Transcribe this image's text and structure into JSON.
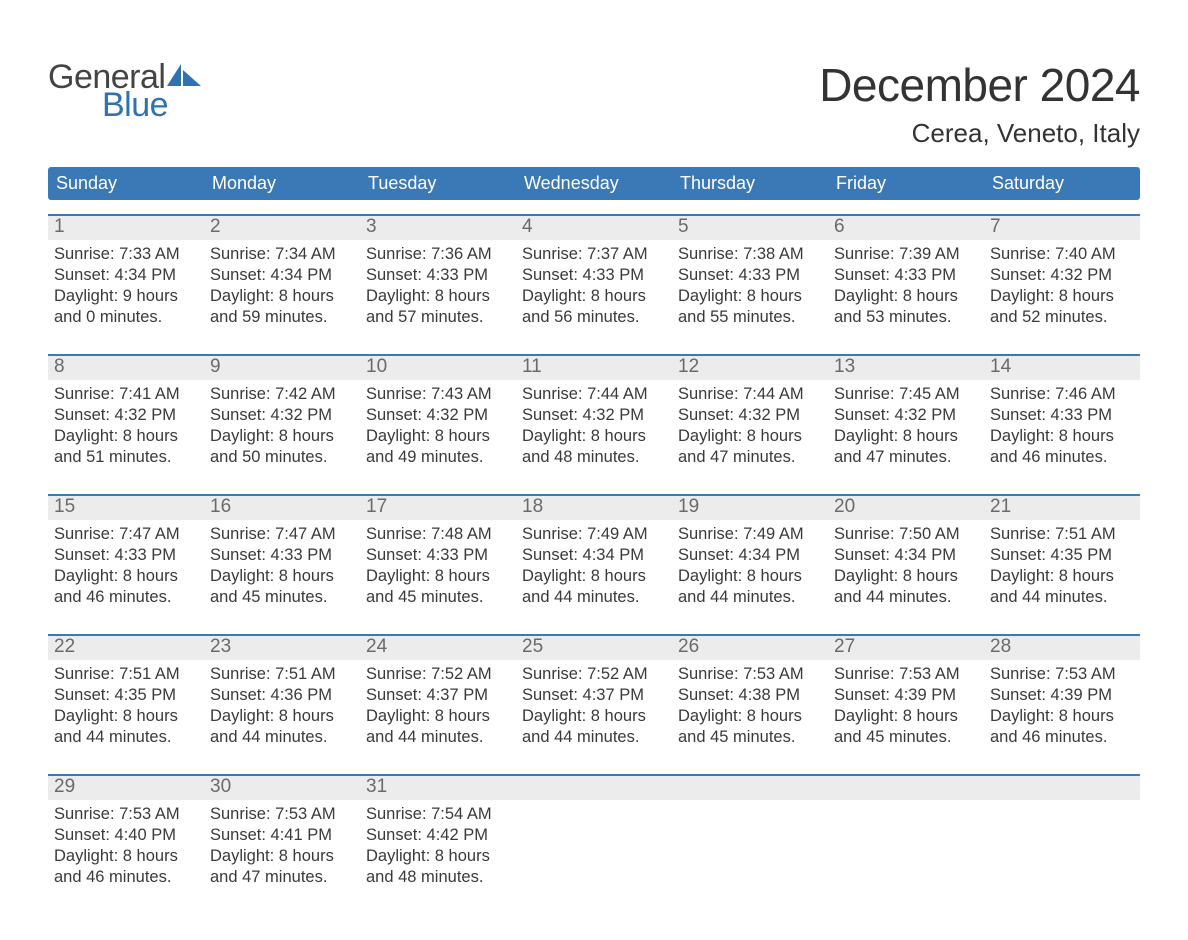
{
  "brand": {
    "word1": "General",
    "word2": "Blue",
    "text_color_top": "#444444",
    "text_color_bottom": "#2f72b4",
    "sail_color": "#2f72b4"
  },
  "header": {
    "month_title": "December 2024",
    "location": "Cerea, Veneto, Italy"
  },
  "style": {
    "header_bg": "#3b78b6",
    "header_text": "#ffffff",
    "daynum_bg": "#ececec",
    "daynum_border_top": "#3b78b6",
    "daynum_text": "#6a6a6a",
    "body_text": "#3a3a3a",
    "page_bg": "#ffffff",
    "font_family": "Arial, Helvetica, sans-serif",
    "month_title_fontsize": 46,
    "location_fontsize": 26,
    "dow_fontsize": 18,
    "daynum_fontsize": 19,
    "cell_fontsize": 16.5
  },
  "days_of_week": [
    "Sunday",
    "Monday",
    "Tuesday",
    "Wednesday",
    "Thursday",
    "Friday",
    "Saturday"
  ],
  "weeks": [
    [
      {
        "n": "1",
        "sunrise": "Sunrise: 7:33 AM",
        "sunset": "Sunset: 4:34 PM",
        "d1": "Daylight: 9 hours",
        "d2": "and 0 minutes."
      },
      {
        "n": "2",
        "sunrise": "Sunrise: 7:34 AM",
        "sunset": "Sunset: 4:34 PM",
        "d1": "Daylight: 8 hours",
        "d2": "and 59 minutes."
      },
      {
        "n": "3",
        "sunrise": "Sunrise: 7:36 AM",
        "sunset": "Sunset: 4:33 PM",
        "d1": "Daylight: 8 hours",
        "d2": "and 57 minutes."
      },
      {
        "n": "4",
        "sunrise": "Sunrise: 7:37 AM",
        "sunset": "Sunset: 4:33 PM",
        "d1": "Daylight: 8 hours",
        "d2": "and 56 minutes."
      },
      {
        "n": "5",
        "sunrise": "Sunrise: 7:38 AM",
        "sunset": "Sunset: 4:33 PM",
        "d1": "Daylight: 8 hours",
        "d2": "and 55 minutes."
      },
      {
        "n": "6",
        "sunrise": "Sunrise: 7:39 AM",
        "sunset": "Sunset: 4:33 PM",
        "d1": "Daylight: 8 hours",
        "d2": "and 53 minutes."
      },
      {
        "n": "7",
        "sunrise": "Sunrise: 7:40 AM",
        "sunset": "Sunset: 4:32 PM",
        "d1": "Daylight: 8 hours",
        "d2": "and 52 minutes."
      }
    ],
    [
      {
        "n": "8",
        "sunrise": "Sunrise: 7:41 AM",
        "sunset": "Sunset: 4:32 PM",
        "d1": "Daylight: 8 hours",
        "d2": "and 51 minutes."
      },
      {
        "n": "9",
        "sunrise": "Sunrise: 7:42 AM",
        "sunset": "Sunset: 4:32 PM",
        "d1": "Daylight: 8 hours",
        "d2": "and 50 minutes."
      },
      {
        "n": "10",
        "sunrise": "Sunrise: 7:43 AM",
        "sunset": "Sunset: 4:32 PM",
        "d1": "Daylight: 8 hours",
        "d2": "and 49 minutes."
      },
      {
        "n": "11",
        "sunrise": "Sunrise: 7:44 AM",
        "sunset": "Sunset: 4:32 PM",
        "d1": "Daylight: 8 hours",
        "d2": "and 48 minutes."
      },
      {
        "n": "12",
        "sunrise": "Sunrise: 7:44 AM",
        "sunset": "Sunset: 4:32 PM",
        "d1": "Daylight: 8 hours",
        "d2": "and 47 minutes."
      },
      {
        "n": "13",
        "sunrise": "Sunrise: 7:45 AM",
        "sunset": "Sunset: 4:32 PM",
        "d1": "Daylight: 8 hours",
        "d2": "and 47 minutes."
      },
      {
        "n": "14",
        "sunrise": "Sunrise: 7:46 AM",
        "sunset": "Sunset: 4:33 PM",
        "d1": "Daylight: 8 hours",
        "d2": "and 46 minutes."
      }
    ],
    [
      {
        "n": "15",
        "sunrise": "Sunrise: 7:47 AM",
        "sunset": "Sunset: 4:33 PM",
        "d1": "Daylight: 8 hours",
        "d2": "and 46 minutes."
      },
      {
        "n": "16",
        "sunrise": "Sunrise: 7:47 AM",
        "sunset": "Sunset: 4:33 PM",
        "d1": "Daylight: 8 hours",
        "d2": "and 45 minutes."
      },
      {
        "n": "17",
        "sunrise": "Sunrise: 7:48 AM",
        "sunset": "Sunset: 4:33 PM",
        "d1": "Daylight: 8 hours",
        "d2": "and 45 minutes."
      },
      {
        "n": "18",
        "sunrise": "Sunrise: 7:49 AM",
        "sunset": "Sunset: 4:34 PM",
        "d1": "Daylight: 8 hours",
        "d2": "and 44 minutes."
      },
      {
        "n": "19",
        "sunrise": "Sunrise: 7:49 AM",
        "sunset": "Sunset: 4:34 PM",
        "d1": "Daylight: 8 hours",
        "d2": "and 44 minutes."
      },
      {
        "n": "20",
        "sunrise": "Sunrise: 7:50 AM",
        "sunset": "Sunset: 4:34 PM",
        "d1": "Daylight: 8 hours",
        "d2": "and 44 minutes."
      },
      {
        "n": "21",
        "sunrise": "Sunrise: 7:51 AM",
        "sunset": "Sunset: 4:35 PM",
        "d1": "Daylight: 8 hours",
        "d2": "and 44 minutes."
      }
    ],
    [
      {
        "n": "22",
        "sunrise": "Sunrise: 7:51 AM",
        "sunset": "Sunset: 4:35 PM",
        "d1": "Daylight: 8 hours",
        "d2": "and 44 minutes."
      },
      {
        "n": "23",
        "sunrise": "Sunrise: 7:51 AM",
        "sunset": "Sunset: 4:36 PM",
        "d1": "Daylight: 8 hours",
        "d2": "and 44 minutes."
      },
      {
        "n": "24",
        "sunrise": "Sunrise: 7:52 AM",
        "sunset": "Sunset: 4:37 PM",
        "d1": "Daylight: 8 hours",
        "d2": "and 44 minutes."
      },
      {
        "n": "25",
        "sunrise": "Sunrise: 7:52 AM",
        "sunset": "Sunset: 4:37 PM",
        "d1": "Daylight: 8 hours",
        "d2": "and 44 minutes."
      },
      {
        "n": "26",
        "sunrise": "Sunrise: 7:53 AM",
        "sunset": "Sunset: 4:38 PM",
        "d1": "Daylight: 8 hours",
        "d2": "and 45 minutes."
      },
      {
        "n": "27",
        "sunrise": "Sunrise: 7:53 AM",
        "sunset": "Sunset: 4:39 PM",
        "d1": "Daylight: 8 hours",
        "d2": "and 45 minutes."
      },
      {
        "n": "28",
        "sunrise": "Sunrise: 7:53 AM",
        "sunset": "Sunset: 4:39 PM",
        "d1": "Daylight: 8 hours",
        "d2": "and 46 minutes."
      }
    ],
    [
      {
        "n": "29",
        "sunrise": "Sunrise: 7:53 AM",
        "sunset": "Sunset: 4:40 PM",
        "d1": "Daylight: 8 hours",
        "d2": "and 46 minutes."
      },
      {
        "n": "30",
        "sunrise": "Sunrise: 7:53 AM",
        "sunset": "Sunset: 4:41 PM",
        "d1": "Daylight: 8 hours",
        "d2": "and 47 minutes."
      },
      {
        "n": "31",
        "sunrise": "Sunrise: 7:54 AM",
        "sunset": "Sunset: 4:42 PM",
        "d1": "Daylight: 8 hours",
        "d2": "and 48 minutes."
      },
      {
        "n": "",
        "sunrise": "",
        "sunset": "",
        "d1": "",
        "d2": ""
      },
      {
        "n": "",
        "sunrise": "",
        "sunset": "",
        "d1": "",
        "d2": ""
      },
      {
        "n": "",
        "sunrise": "",
        "sunset": "",
        "d1": "",
        "d2": ""
      },
      {
        "n": "",
        "sunrise": "",
        "sunset": "",
        "d1": "",
        "d2": ""
      }
    ]
  ]
}
